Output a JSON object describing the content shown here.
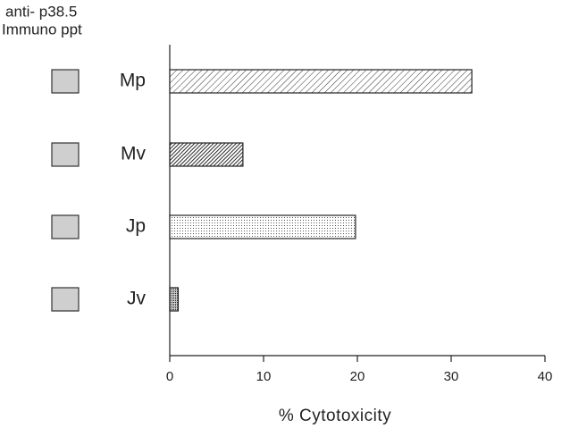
{
  "chart_data": {
    "type": "bar",
    "orientation": "horizontal",
    "annotations": [
      "anti- p38.5",
      "Immuno ppt"
    ],
    "categories": [
      "Mp",
      "Mv",
      "Jp",
      "Jv"
    ],
    "values": [
      32.2,
      7.8,
      19.8,
      0.9
    ],
    "xlim": [
      0,
      40
    ],
    "xticks": [
      0,
      10,
      20,
      30,
      40
    ],
    "xlabel": "% Cytotoxicity"
  }
}
